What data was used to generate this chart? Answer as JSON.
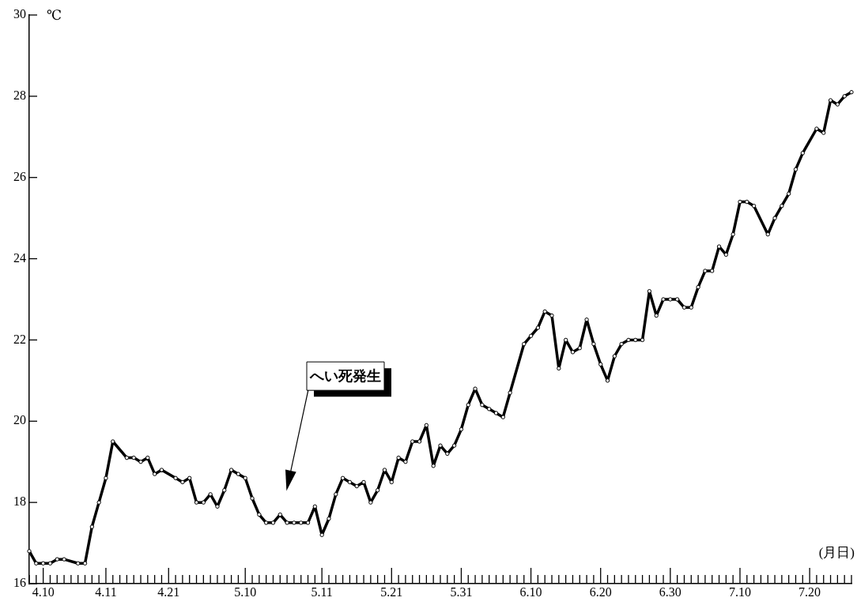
{
  "chart_data": {
    "type": "line",
    "xlabel": "(月日)",
    "ylabel": "℃",
    "categories": [
      null,
      null,
      "4.10",
      null,
      null,
      null,
      null,
      null,
      null,
      null,
      null,
      "4.11",
      null,
      null,
      null,
      null,
      null,
      null,
      null,
      null,
      "4.21",
      null,
      null,
      null,
      null,
      null,
      null,
      null,
      null,
      null,
      null,
      "5.10",
      null,
      null,
      null,
      null,
      null,
      null,
      null,
      null,
      null,
      null,
      "5.11",
      null,
      null,
      null,
      null,
      null,
      null,
      null,
      null,
      null,
      "5.21",
      null,
      null,
      null,
      null,
      null,
      null,
      null,
      null,
      null,
      "5.31",
      null,
      null,
      null,
      null,
      null,
      null,
      null,
      null,
      null,
      "6.10",
      null,
      null,
      null,
      null,
      null,
      null,
      null,
      null,
      null,
      "6.20",
      null,
      null,
      null,
      null,
      null,
      null,
      null,
      null,
      null,
      "6.30",
      null,
      null,
      null,
      null,
      null,
      null,
      null,
      null,
      null,
      "7.10",
      null,
      null,
      null,
      null,
      null,
      null,
      null,
      null,
      null,
      "7.20",
      null,
      null,
      null,
      null,
      null,
      null
    ],
    "series": [
      {
        "color": "#000000",
        "values": [
          16.8,
          16.5,
          16.5,
          16.5,
          16.6,
          16.6,
          null,
          16.5,
          16.5,
          17.4,
          18.0,
          18.6,
          19.5,
          null,
          19.1,
          19.1,
          19.0,
          19.1,
          18.7,
          18.8,
          null,
          18.6,
          18.5,
          18.6,
          18.0,
          18.0,
          18.2,
          17.9,
          18.3,
          18.8,
          18.7,
          18.6,
          18.1,
          17.7,
          17.5,
          17.5,
          17.7,
          17.5,
          17.5,
          17.5,
          17.5,
          17.9,
          17.2,
          17.6,
          18.2,
          18.6,
          18.5,
          18.4,
          18.5,
          18.0,
          18.3,
          18.8,
          18.5,
          19.1,
          19.0,
          19.5,
          19.5,
          19.9,
          18.9,
          19.4,
          19.2,
          19.4,
          19.8,
          20.4,
          20.8,
          20.4,
          20.3,
          20.2,
          20.1,
          20.7,
          null,
          21.9,
          22.1,
          22.3,
          22.7,
          22.6,
          21.3,
          22.0,
          21.7,
          21.8,
          22.5,
          21.9,
          21.4,
          21.0,
          21.6,
          21.9,
          22.0,
          22.0,
          22.0,
          23.2,
          22.6,
          23.0,
          23.0,
          23.0,
          22.8,
          22.8,
          23.3,
          23.7,
          23.7,
          24.3,
          24.1,
          24.6,
          25.4,
          25.4,
          25.3,
          null,
          24.6,
          25.0,
          25.3,
          25.6,
          26.2,
          26.6,
          null,
          27.2,
          27.1,
          27.9,
          27.8,
          28.0,
          28.1
        ]
      }
    ],
    "ylim": [
      16,
      30
    ],
    "yticks": [
      16,
      18,
      20,
      22,
      24,
      26,
      28,
      30
    ],
    "annotations": [
      "へい死発生"
    ],
    "grid": false,
    "legend": false,
    "marker": "circle",
    "line_style": "solid"
  }
}
